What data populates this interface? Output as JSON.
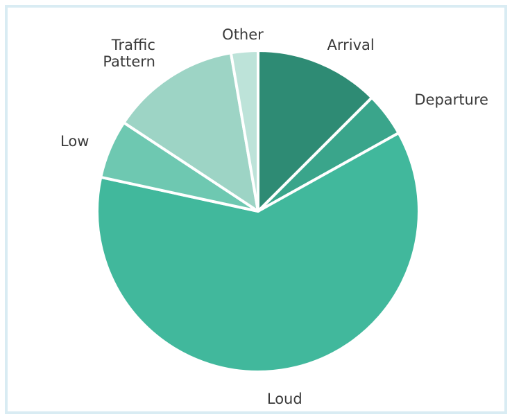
{
  "chart_data": {
    "type": "pie",
    "title": "",
    "start_angle_deg": 0,
    "direction": "clockwise",
    "slices": [
      {
        "label": "Arrival",
        "value": 12.5,
        "color": "#2e8b74"
      },
      {
        "label": "Departure",
        "value": 4.4,
        "color": "#3aa58b"
      },
      {
        "label": "Loud",
        "value": 61.5,
        "color": "#41b89c"
      },
      {
        "label": "Low",
        "value": 5.9,
        "color": "#6ec8b1"
      },
      {
        "label": "Traffic Pattern",
        "value": 13.0,
        "color": "#9dd4c5"
      },
      {
        "label": "Other",
        "value": 2.7,
        "color": "#bde3d9"
      }
    ]
  }
}
